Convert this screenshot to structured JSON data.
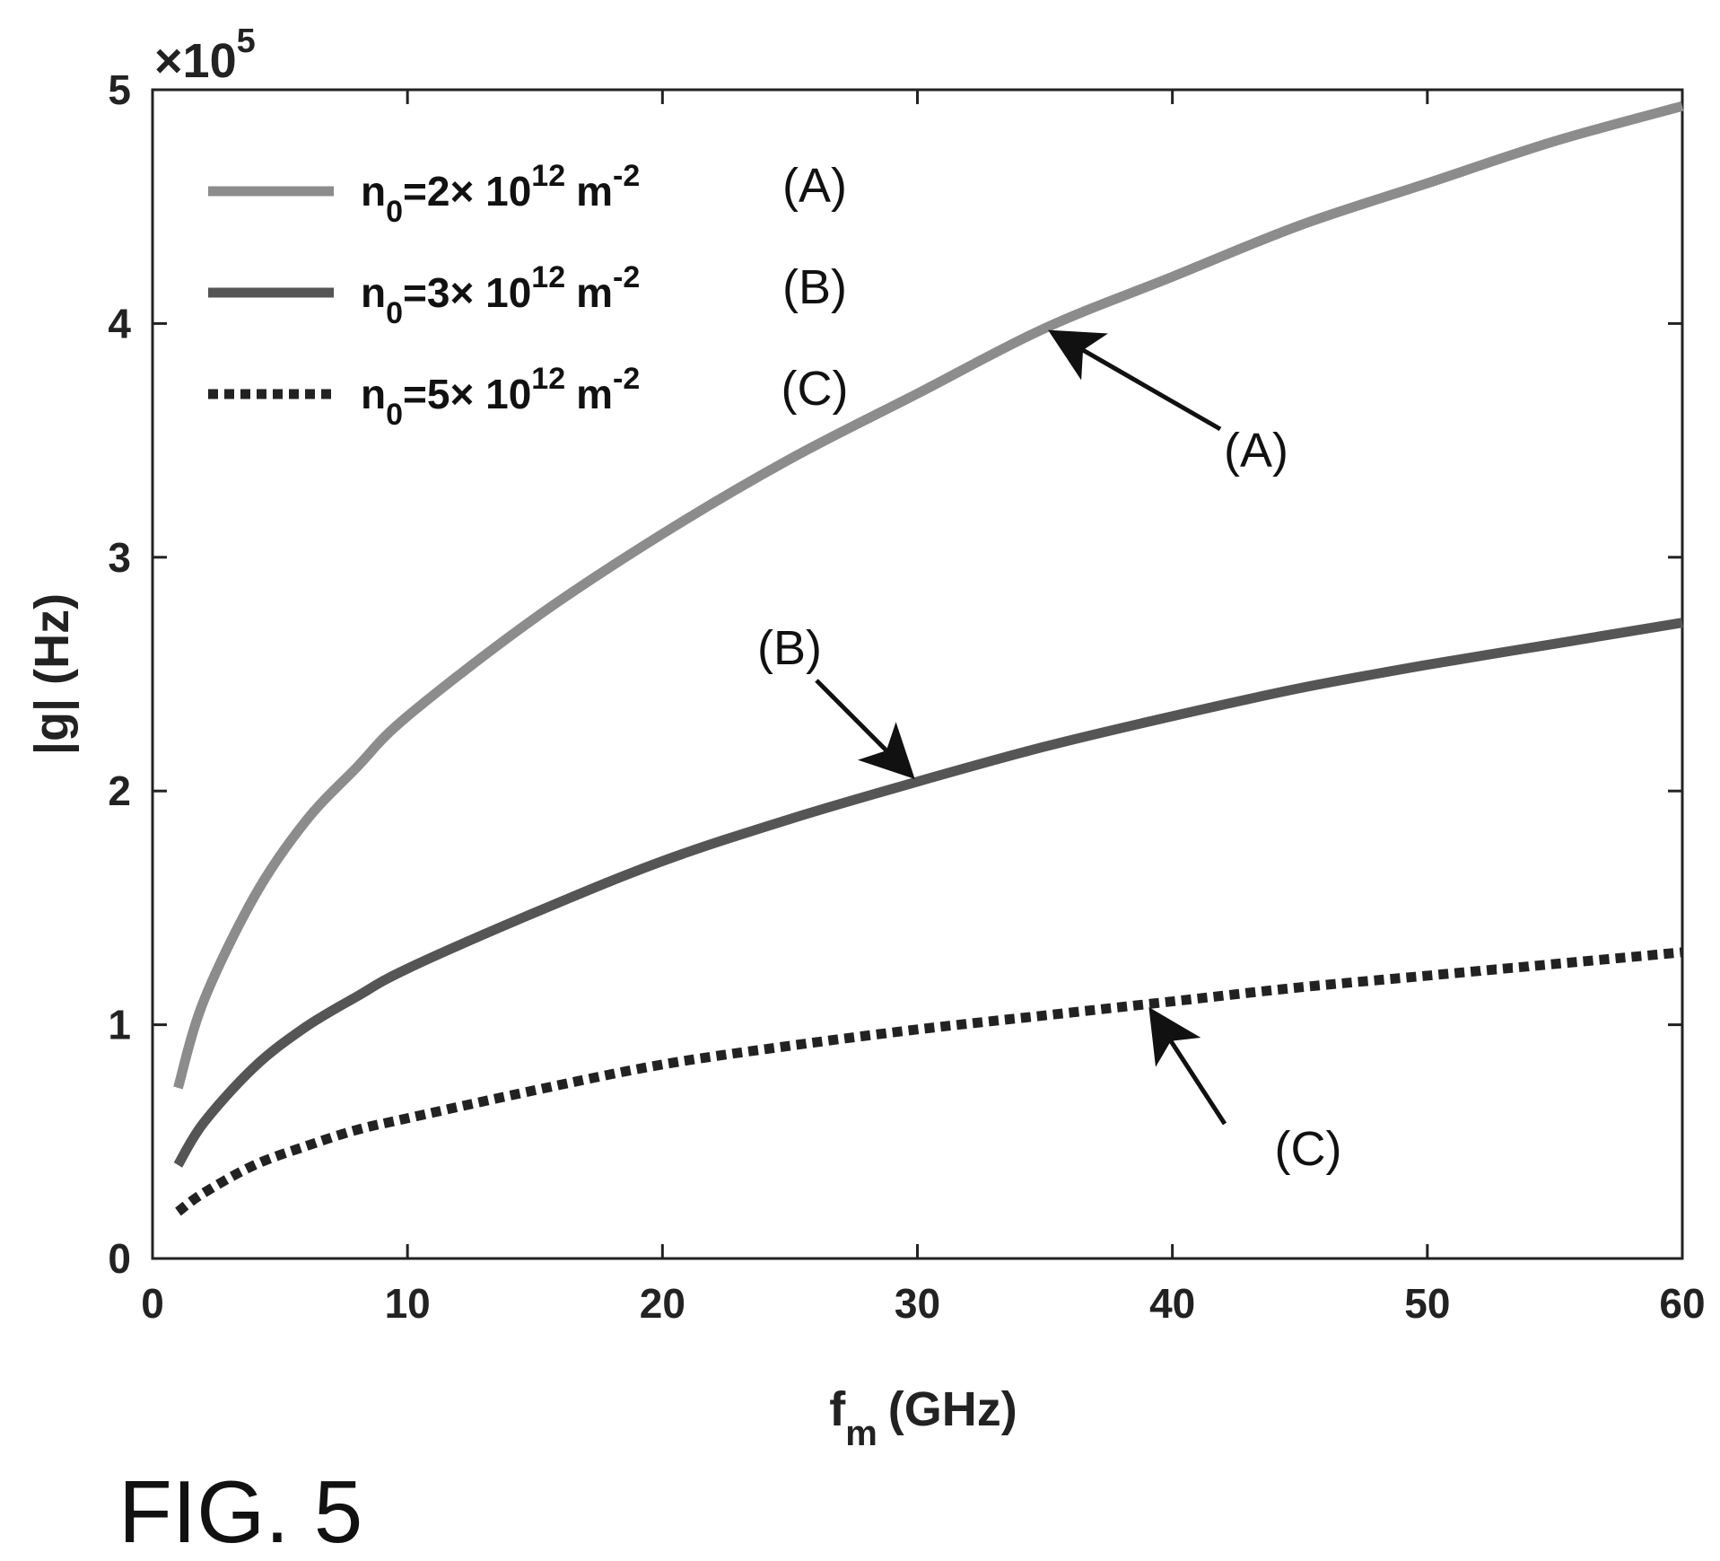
{
  "figure_label": "FIG. 5",
  "chart_data": {
    "type": "line",
    "xlabel": "f",
    "xlabel_sub": "m",
    "xlabel_unit": "(GHz)",
    "ylabel": "|g| (Hz)",
    "y_multiplier": "×10",
    "y_multiplier_exp": "5",
    "xlim": [
      0,
      60
    ],
    "ylim": [
      0,
      5
    ],
    "xticks": [
      0,
      10,
      20,
      30,
      40,
      50,
      60
    ],
    "yticks": [
      0,
      1,
      2,
      3,
      4,
      5
    ],
    "grid": false,
    "legend_placement": "top-left",
    "x": [
      1,
      2,
      4,
      6,
      8,
      10,
      15,
      20,
      25,
      30,
      35,
      40,
      45,
      50,
      55,
      60
    ],
    "series": [
      {
        "label": "(A)",
        "legend": {
          "n": "n",
          "sub": "0",
          "eq": "=2× 10",
          "exp": "12",
          "unit": "m",
          "unit_exp": "-2"
        },
        "color": "#8c8c8c",
        "dash": "solid",
        "values": [
          0.73,
          1.1,
          1.55,
          1.87,
          2.1,
          2.32,
          2.74,
          3.1,
          3.42,
          3.7,
          3.98,
          4.2,
          4.42,
          4.6,
          4.78,
          4.93
        ]
      },
      {
        "label": "(B)",
        "legend": {
          "n": "n",
          "sub": "0",
          "eq": "=3× 10",
          "exp": "12",
          "unit": "m",
          "unit_exp": "-2"
        },
        "color": "#555555",
        "dash": "solid",
        "values": [
          0.4,
          0.58,
          0.82,
          0.99,
          1.12,
          1.24,
          1.48,
          1.7,
          1.88,
          2.04,
          2.19,
          2.32,
          2.44,
          2.54,
          2.63,
          2.72
        ]
      },
      {
        "label": "(C)",
        "legend": {
          "n": "n",
          "sub": "0",
          "eq": "=5× 10",
          "exp": "12",
          "unit": "m",
          "unit_exp": "-2"
        },
        "color": "#222222",
        "dash": "dotted",
        "values": [
          0.2,
          0.28,
          0.4,
          0.48,
          0.55,
          0.6,
          0.72,
          0.83,
          0.91,
          0.98,
          1.04,
          1.1,
          1.16,
          1.21,
          1.26,
          1.31
        ]
      }
    ],
    "annotations": [
      {
        "text": "(A)",
        "series": 0,
        "x": 35
      },
      {
        "text": "(B)",
        "series": 1,
        "x": 30
      },
      {
        "text": "(C)",
        "series": 2,
        "x": 39
      }
    ]
  }
}
